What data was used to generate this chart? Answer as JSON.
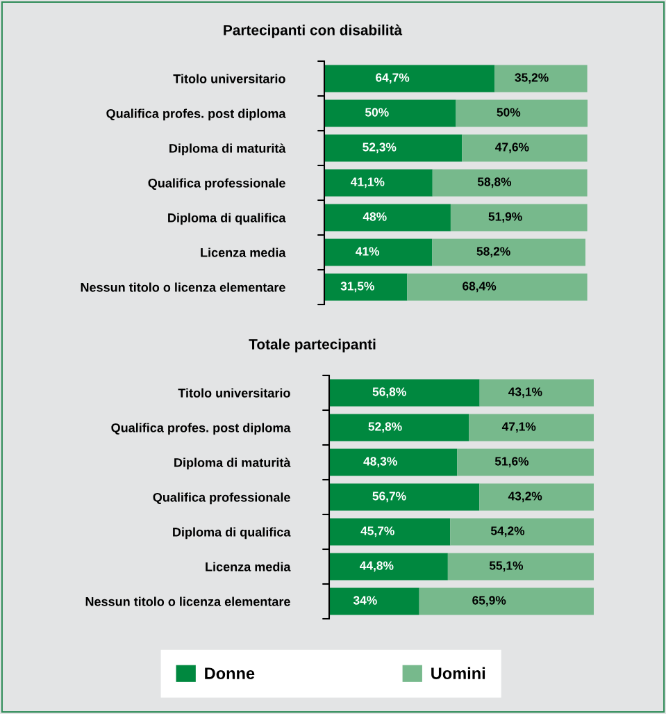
{
  "chart_data": [
    {
      "type": "bar",
      "orientation": "horizontal",
      "stacked": true,
      "title": "Partecipanti con disabilità",
      "legend": "bottom",
      "categories": [
        "Titolo universitario",
        "Qualifica profes. post diploma",
        "Diploma di maturità",
        "Qualifica professionale",
        "Diploma di qualifica",
        "Licenza media",
        "Nessun titolo o licenza elementare"
      ],
      "series": [
        {
          "name": "Donne",
          "color": "#00883f",
          "values": [
            64.7,
            50,
            52.3,
            41.1,
            48,
            41,
            31.5
          ],
          "value_labels": [
            "64,7%",
            "50%",
            "52,3%",
            "41,1%",
            "48%",
            "41%",
            "31,5%"
          ]
        },
        {
          "name": "Uomini",
          "color": "#77b98c",
          "values": [
            35.2,
            50,
            47.6,
            58.8,
            51.9,
            58.2,
            68.4
          ],
          "value_labels": [
            "35,2%",
            "50%",
            "47,6%",
            "58,8%",
            "51,9%",
            "58,2%",
            "68,4%"
          ]
        }
      ]
    },
    {
      "type": "bar",
      "orientation": "horizontal",
      "stacked": true,
      "title": "Totale partecipanti",
      "categories": [
        "Titolo universitario",
        "Qualifica profes. post diploma",
        "Diploma di maturità",
        "Qualifica professionale",
        "Diploma di qualifica",
        "Licenza media",
        "Nessun titolo o licenza elementare"
      ],
      "series": [
        {
          "color": "#00883f",
          "values": [
            56.8,
            52.8,
            48.3,
            56.7,
            45.7,
            44.8,
            34
          ],
          "value_labels": [
            "56,8%",
            "52,8%",
            "48,3%",
            "56,7%",
            "45,7%",
            "44,8%",
            "34%"
          ]
        },
        {
          "color": "#77b98c",
          "values": [
            43.1,
            47.1,
            51.6,
            43.2,
            54.2,
            55.1,
            65.9
          ],
          "value_labels": [
            "43,1%",
            "47,1%",
            "51,6%",
            "43,2%",
            "54,2%",
            "55,1%",
            "65,9%"
          ]
        }
      ]
    }
  ]
}
